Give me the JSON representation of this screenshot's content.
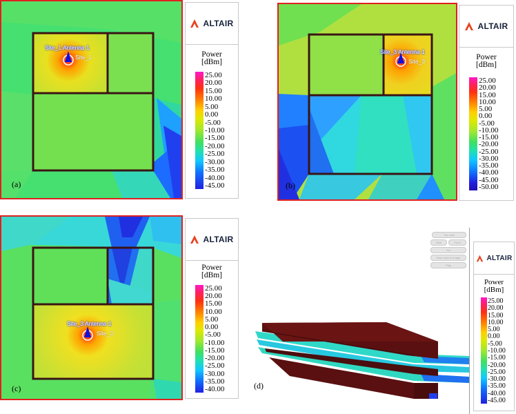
{
  "brand": {
    "name": "ALTAIR"
  },
  "legend": {
    "title_line1": "Power",
    "title_line2": "[dBm]",
    "ticks_std": [
      "25.00",
      "20.00",
      "15.00",
      "10.00",
      "5.00",
      "0.00",
      "-5.00",
      "-10.00",
      "-15.00",
      "-20.00",
      "-25.00",
      "-30.00",
      "-35.00",
      "-40.00",
      "-45.00"
    ],
    "ticks_b": [
      "25.00",
      "20.00",
      "15.00",
      "10.00",
      "5.00",
      "0.00",
      "-5.00",
      "-10.00",
      "-15.00",
      "-20.00",
      "-25.00",
      "-30.00",
      "-35.00",
      "-40.00",
      "-45.00",
      "-50.00"
    ],
    "ticks_c": [
      "25.00",
      "20.00",
      "15.00",
      "10.00",
      "5.00",
      "0.00",
      "-5.00",
      "-10.00",
      "-15.00",
      "-20.00",
      "-25.00",
      "-30.00",
      "-35.00",
      "-40.00"
    ]
  },
  "panels": {
    "a": {
      "label": "(a)",
      "antenna": "Site_1 Antenna 1",
      "site": "Site_1"
    },
    "b": {
      "label": "(b)",
      "antenna": "Site_3 Antenna 1",
      "site": "Site_3"
    },
    "c": {
      "label": "(c)",
      "antenna": "Site_3 Antenna 1",
      "site": "Site_3"
    },
    "d": {
      "label": "(d)"
    }
  },
  "viewer_controls": [
    "Top view",
    "Side",
    "Front",
    "Iso",
    "Save view to image",
    "Play"
  ],
  "colors": {
    "frame_red": "#e02020",
    "wall": "#3a1414",
    "slab": "#5a1010"
  }
}
